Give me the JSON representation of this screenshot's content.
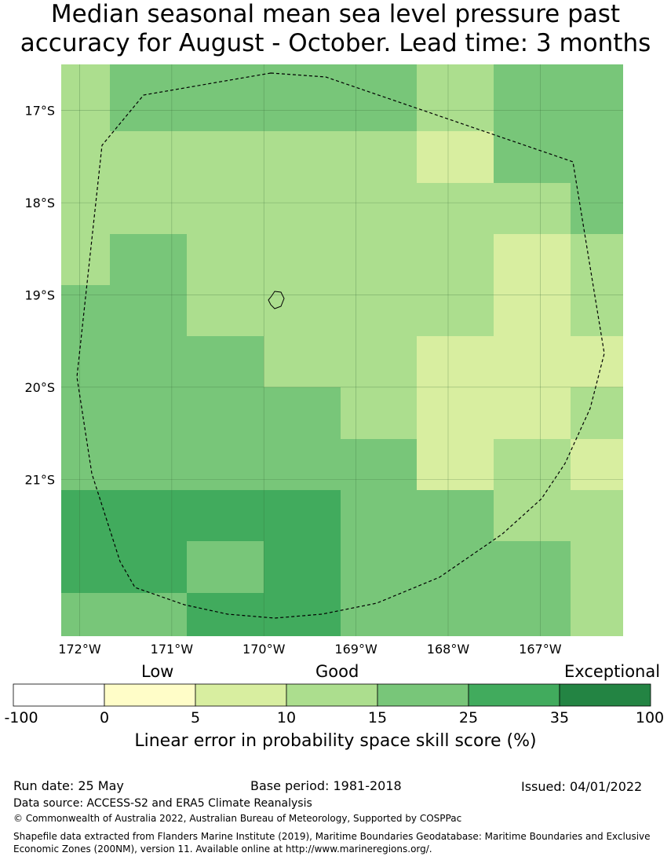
{
  "title": {
    "line1": "Median seasonal mean sea level pressure past",
    "line2": "accuracy for August - October. Lead time: 3 months"
  },
  "map": {
    "lon_range": [
      -172.2,
      -166.1
    ],
    "lat_range": [
      -22.7,
      -16.5
    ],
    "lon_ticks": [
      {
        "value": -172,
        "label": "172°W"
      },
      {
        "value": -171,
        "label": "171°W"
      },
      {
        "value": -170,
        "label": "170°W"
      },
      {
        "value": -169,
        "label": "169°W"
      },
      {
        "value": -168,
        "label": "168°W"
      },
      {
        "value": -167,
        "label": "167°W"
      }
    ],
    "lat_ticks": [
      {
        "value": -17,
        "label": "17°S"
      },
      {
        "value": -18,
        "label": "18°S"
      },
      {
        "value": -19,
        "label": "19°S"
      },
      {
        "value": -20,
        "label": "20°S"
      },
      {
        "value": -21,
        "label": "21°S"
      }
    ],
    "grid": true,
    "cell_size_deg": 0.833,
    "cells_note_rows_top_to_bottom": "category index per cell: 2=10-15, 3=15-25, 4=25-35, 1=5-10",
    "cells": [
      [
        2,
        3,
        3,
        3,
        3,
        2,
        3,
        3
      ],
      [
        2,
        2,
        2,
        2,
        2,
        1,
        3,
        3
      ],
      [
        2,
        2,
        2,
        2,
        2,
        2,
        2,
        3
      ],
      [
        2,
        3,
        2,
        2,
        2,
        2,
        1,
        2
      ],
      [
        3,
        3,
        2,
        2,
        2,
        2,
        1,
        2
      ],
      [
        3,
        3,
        3,
        2,
        2,
        1,
        1,
        1
      ],
      [
        3,
        3,
        3,
        3,
        2,
        1,
        1,
        2
      ],
      [
        3,
        3,
        3,
        3,
        3,
        1,
        2,
        1
      ],
      [
        4,
        4,
        4,
        4,
        3,
        3,
        2,
        2
      ],
      [
        4,
        4,
        3,
        4,
        3,
        3,
        3,
        2
      ],
      [
        3,
        3,
        4,
        4,
        3,
        3,
        3,
        2
      ]
    ]
  },
  "colorbar": {
    "labels": {
      "low": "Low",
      "good": "Good",
      "exceptional": "Exceptional"
    },
    "ticks": [
      "-100",
      "0",
      "5",
      "10",
      "15",
      "25",
      "35",
      "100"
    ],
    "colors": [
      "#ffffff",
      "#fffdc8",
      "#d8eea0",
      "#acde8e",
      "#78c679",
      "#41ab5d",
      "#238443"
    ],
    "title": "Linear error in probability space skill score (%)"
  },
  "footer": {
    "run_date": "Run date: 25 May",
    "base_period": "Base period: 1981-2018",
    "issued": "Issued: 04/01/2022",
    "data_source": "Data source: ACCESS-S2 and ERA5 Climate Reanalysis",
    "copyright": "© Commonwealth of Australia 2022, Australian Bureau of Meteorology, Supported by COSPPac",
    "shapefile": "Shapefile data extracted from Flanders Marine Institute (2019), Maritime Boundaries Geodatabase: Maritime Boundaries and Exclusive Economic Zones (200NM), version 11. Available online at http://www.marineregions.org/."
  }
}
